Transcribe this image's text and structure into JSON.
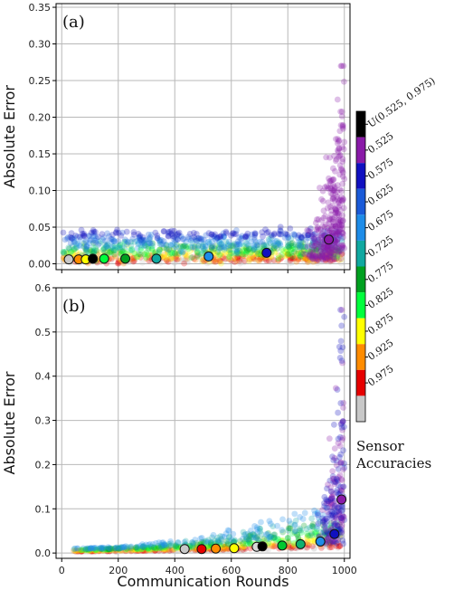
{
  "chart_data": [
    {
      "type": "scatter",
      "panel_label": "(a)",
      "xlabel": "",
      "ylabel": "Absolute Error",
      "xlim": [
        -20,
        1020
      ],
      "ylim": [
        -0.008,
        0.355
      ],
      "xticks": [
        0,
        200,
        400,
        600,
        800,
        1000
      ],
      "xtick_labels": [
        "",
        "",
        "",
        "",
        "",
        ""
      ],
      "yticks": [
        0.0,
        0.05,
        0.1,
        0.15,
        0.2,
        0.25,
        0.3,
        0.35
      ],
      "ytick_labels": [
        "0.00",
        "0.05",
        "0.10",
        "0.15",
        "0.20",
        "0.25",
        "0.30",
        "0.35"
      ],
      "grid": true,
      "markers": [
        {
          "x": 25,
          "y": 0.006,
          "color": "#c8c8c8"
        },
        {
          "x": 60,
          "y": 0.006,
          "color": "#ff8c00"
        },
        {
          "x": 85,
          "y": 0.006,
          "color": "#ffff00"
        },
        {
          "x": 110,
          "y": 0.007,
          "color": "#000000"
        },
        {
          "x": 150,
          "y": 0.007,
          "color": "#00ff3c"
        },
        {
          "x": 225,
          "y": 0.007,
          "color": "#00a020"
        },
        {
          "x": 335,
          "y": 0.007,
          "color": "#10a8a0"
        },
        {
          "x": 520,
          "y": 0.01,
          "color": "#1e8ce8"
        },
        {
          "x": 725,
          "y": 0.015,
          "color": "#1010c0"
        },
        {
          "x": 945,
          "y": 0.033,
          "color": "#8a1aa8"
        }
      ]
    },
    {
      "type": "scatter",
      "panel_label": "(b)",
      "xlabel": "Communication Rounds",
      "ylabel": "Absolute Error",
      "xlim": [
        -20,
        1020
      ],
      "ylim": [
        -0.012,
        0.6
      ],
      "xticks": [
        0,
        200,
        400,
        600,
        800,
        1000
      ],
      "xtick_labels": [
        "0",
        "200",
        "400",
        "600",
        "800",
        "1000"
      ],
      "yticks": [
        0.0,
        0.1,
        0.2,
        0.3,
        0.4,
        0.5,
        0.6
      ],
      "ytick_labels": [
        "0.0",
        "0.1",
        "0.2",
        "0.3",
        "0.4",
        "0.5",
        "0.6"
      ],
      "grid": true,
      "markers": [
        {
          "x": 435,
          "y": 0.009,
          "color": "#c8c8c8"
        },
        {
          "x": 495,
          "y": 0.009,
          "color": "#e60000"
        },
        {
          "x": 545,
          "y": 0.01,
          "color": "#ff8c00"
        },
        {
          "x": 610,
          "y": 0.011,
          "color": "#ffff00"
        },
        {
          "x": 690,
          "y": 0.014,
          "color": "#d8d8d8"
        },
        {
          "x": 710,
          "y": 0.015,
          "color": "#000000"
        },
        {
          "x": 780,
          "y": 0.017,
          "color": "#00c830"
        },
        {
          "x": 845,
          "y": 0.02,
          "color": "#10b070"
        },
        {
          "x": 915,
          "y": 0.026,
          "color": "#1e8ce8"
        },
        {
          "x": 965,
          "y": 0.043,
          "color": "#1010c0"
        },
        {
          "x": 990,
          "y": 0.121,
          "color": "#8a1aa8"
        }
      ]
    }
  ],
  "colorbar": {
    "title_line1": "Sensor",
    "title_line2": "Accuracies",
    "entries": [
      {
        "label": "U(0.525, 0.975)",
        "color": "#000000"
      },
      {
        "label": "0.525",
        "color": "#8a1aa8"
      },
      {
        "label": "0.575",
        "color": "#1010c0"
      },
      {
        "label": "0.625",
        "color": "#1a5ad8"
      },
      {
        "label": "0.675",
        "color": "#1e8ce8"
      },
      {
        "label": "0.725",
        "color": "#10a8a0"
      },
      {
        "label": "0.775",
        "color": "#00a020"
      },
      {
        "label": "0.825",
        "color": "#00ff3c"
      },
      {
        "label": "0.875",
        "color": "#ffff00"
      },
      {
        "label": "0.925",
        "color": "#ff8c00"
      },
      {
        "label": "0.975",
        "color": "#e60000"
      },
      {
        "label": "",
        "color": "#c8c8c8"
      }
    ]
  }
}
